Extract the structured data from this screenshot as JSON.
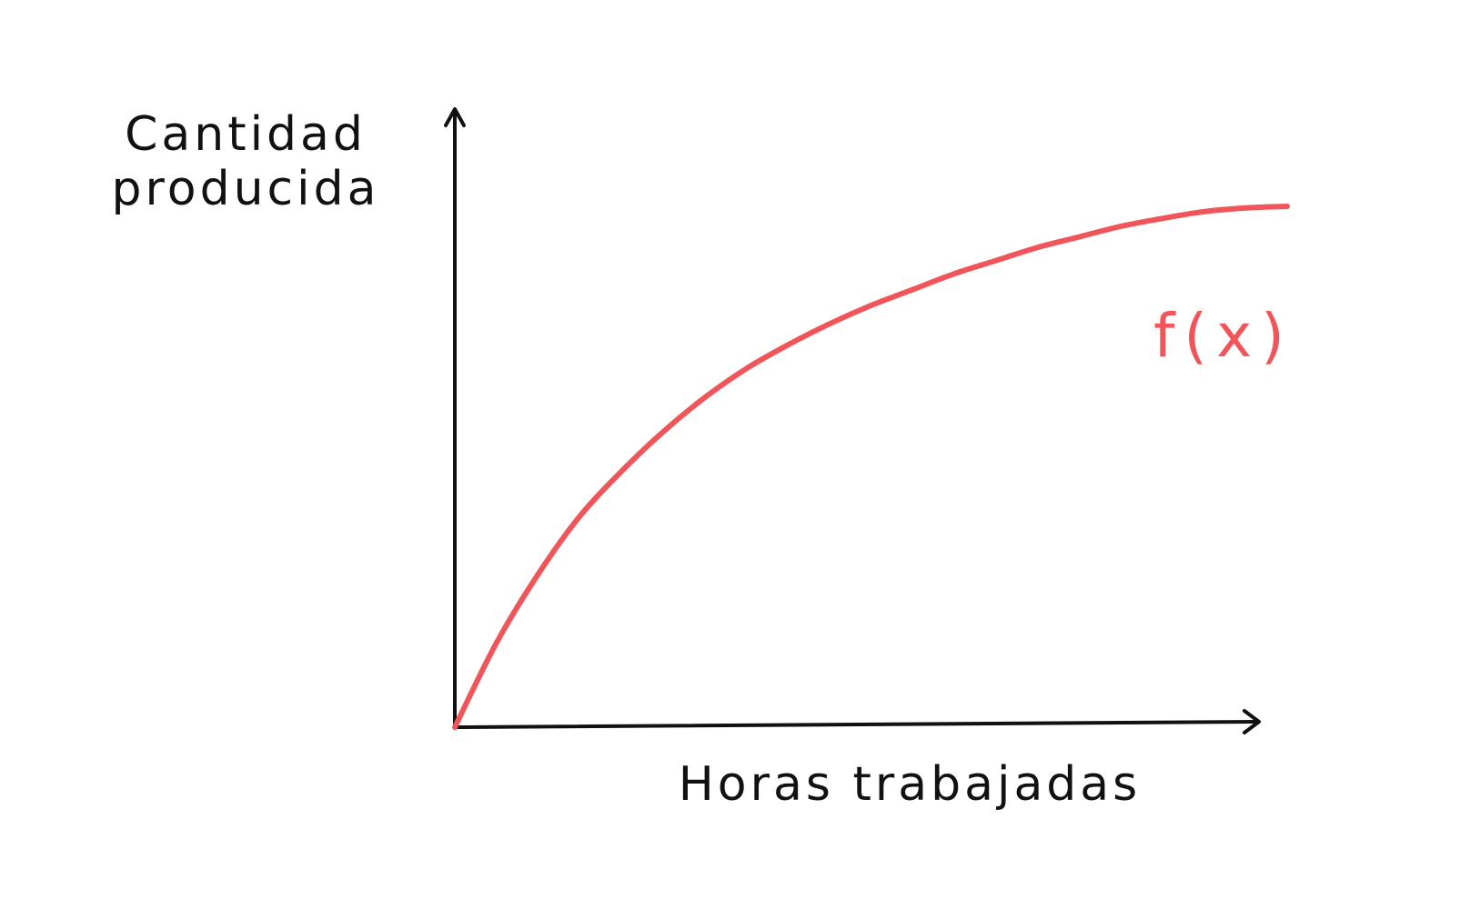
{
  "chart_data": {
    "type": "line",
    "title": "",
    "ylabel_lines": [
      "Cantidad",
      "producida"
    ],
    "xlabel": "Horas trabajadas",
    "grid": false,
    "ticks": false,
    "legend": "none",
    "xlim": [
      0,
      10
    ],
    "ylim": [
      0,
      10
    ],
    "series": [
      {
        "name": "f(x)",
        "color": "#f0555a",
        "x": [
          0,
          0.5,
          1,
          1.5,
          2,
          2.5,
          3,
          3.5,
          4,
          4.5,
          5,
          5.5,
          6,
          6.5,
          7,
          7.5,
          8,
          8.5,
          9,
          9.5,
          10
        ],
        "y": [
          0,
          1.6,
          2.9,
          4.0,
          4.85,
          5.6,
          6.25,
          6.8,
          7.25,
          7.65,
          8.0,
          8.3,
          8.6,
          8.85,
          9.1,
          9.3,
          9.5,
          9.65,
          9.78,
          9.85,
          9.88
        ]
      }
    ]
  },
  "colors": {
    "axes": "#111111",
    "curve": "#f0555a",
    "background": "#ffffff"
  }
}
